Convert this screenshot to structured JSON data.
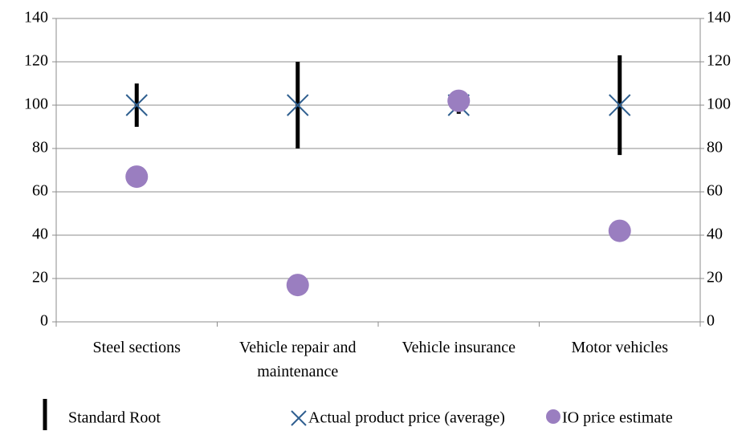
{
  "chart_data": {
    "type": "scatter",
    "categories": [
      "Steel sections",
      "Vehicle repair and maintenance",
      "Vehicle insurance",
      "Motor vehicles"
    ],
    "series": [
      {
        "name": "Standard Root",
        "color": "#000000",
        "values": [
          10,
          20,
          4,
          23
        ]
      },
      {
        "name": "Actual product price (average)",
        "color": "#2f5f8f",
        "values": [
          100,
          100,
          100,
          100
        ]
      },
      {
        "name": "IO price estimate",
        "color": "#9a7ec0",
        "values": [
          67,
          17,
          102,
          42
        ]
      }
    ],
    "ylim": [
      0,
      140
    ],
    "yticks": [
      0,
      20,
      40,
      60,
      80,
      100,
      120,
      140
    ],
    "y2lim": [
      0,
      140
    ],
    "y2ticks": [
      0,
      20,
      40,
      60,
      80,
      100,
      120,
      140
    ],
    "grid": true,
    "legend": "bottom"
  }
}
